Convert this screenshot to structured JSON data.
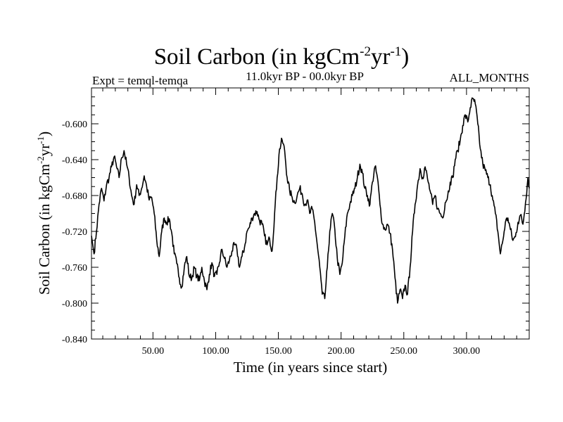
{
  "chart_data": {
    "type": "line",
    "title": "Soil Carbon (in kgCm",
    "title_sup1": "-2",
    "title_mid": "yr",
    "title_sup2": "-1",
    "title_end": ")",
    "subtitle_left": "Expt = temql-temqa",
    "subtitle_center": "11.0kyr BP - 00.0kyr BP",
    "subtitle_right": "ALL_MONTHS",
    "xlabel": "Time (in years since start)",
    "ylabel_main": "Soil Carbon (in kgCm",
    "ylabel_sup1": "-2",
    "ylabel_mid": "yr",
    "ylabel_sup2": "-1",
    "ylabel_end": ")",
    "xlim": [
      1,
      350
    ],
    "ylim": [
      -0.84,
      -0.56
    ],
    "x_ticks": [
      {
        "value": 50,
        "label": "50.00"
      },
      {
        "value": 100,
        "label": "100.00"
      },
      {
        "value": 150,
        "label": "150.00"
      },
      {
        "value": 200,
        "label": "200.00"
      },
      {
        "value": 250,
        "label": "250.00"
      },
      {
        "value": 300,
        "label": "300.00"
      }
    ],
    "y_ticks": [
      {
        "value": -0.6,
        "label": "-0.600"
      },
      {
        "value": -0.64,
        "label": "-0.640"
      },
      {
        "value": -0.68,
        "label": "-0.680"
      },
      {
        "value": -0.72,
        "label": "-0.720"
      },
      {
        "value": -0.76,
        "label": "-0.760"
      },
      {
        "value": -0.8,
        "label": "-0.800"
      },
      {
        "value": -0.84,
        "label": "-0.840"
      }
    ],
    "series": [
      {
        "name": "temql-temqa",
        "color": "#000000",
        "points": [
          [
            1,
            -0.725
          ],
          [
            3,
            -0.745
          ],
          [
            5,
            -0.72
          ],
          [
            7,
            -0.69
          ],
          [
            9,
            -0.672
          ],
          [
            11,
            -0.686
          ],
          [
            13,
            -0.668
          ],
          [
            15,
            -0.66
          ],
          [
            17,
            -0.648
          ],
          [
            19,
            -0.637
          ],
          [
            21,
            -0.648
          ],
          [
            23,
            -0.66
          ],
          [
            25,
            -0.638
          ],
          [
            27,
            -0.63
          ],
          [
            29,
            -0.645
          ],
          [
            31,
            -0.66
          ],
          [
            33,
            -0.68
          ],
          [
            35,
            -0.69
          ],
          [
            37,
            -0.668
          ],
          [
            39,
            -0.68
          ],
          [
            41,
            -0.672
          ],
          [
            43,
            -0.658
          ],
          [
            45,
            -0.67
          ],
          [
            47,
            -0.685
          ],
          [
            49,
            -0.682
          ],
          [
            51,
            -0.7
          ],
          [
            53,
            -0.73
          ],
          [
            55,
            -0.748
          ],
          [
            57,
            -0.72
          ],
          [
            59,
            -0.705
          ],
          [
            61,
            -0.71
          ],
          [
            63,
            -0.706
          ],
          [
            65,
            -0.722
          ],
          [
            67,
            -0.745
          ],
          [
            69,
            -0.756
          ],
          [
            71,
            -0.772
          ],
          [
            73,
            -0.782
          ],
          [
            75,
            -0.76
          ],
          [
            77,
            -0.748
          ],
          [
            79,
            -0.77
          ],
          [
            81,
            -0.772
          ],
          [
            83,
            -0.76
          ],
          [
            85,
            -0.77
          ],
          [
            87,
            -0.775
          ],
          [
            89,
            -0.76
          ],
          [
            91,
            -0.775
          ],
          [
            93,
            -0.785
          ],
          [
            95,
            -0.768
          ],
          [
            97,
            -0.755
          ],
          [
            99,
            -0.77
          ],
          [
            101,
            -0.768
          ],
          [
            103,
            -0.755
          ],
          [
            105,
            -0.74
          ],
          [
            107,
            -0.75
          ],
          [
            109,
            -0.76
          ],
          [
            111,
            -0.752
          ],
          [
            113,
            -0.742
          ],
          [
            115,
            -0.735
          ],
          [
            117,
            -0.74
          ],
          [
            119,
            -0.76
          ],
          [
            121,
            -0.748
          ],
          [
            123,
            -0.738
          ],
          [
            125,
            -0.72
          ],
          [
            127,
            -0.715
          ],
          [
            129,
            -0.705
          ],
          [
            131,
            -0.7
          ],
          [
            133,
            -0.698
          ],
          [
            135,
            -0.708
          ],
          [
            137,
            -0.712
          ],
          [
            139,
            -0.725
          ],
          [
            141,
            -0.735
          ],
          [
            143,
            -0.728
          ],
          [
            145,
            -0.742
          ],
          [
            147,
            -0.7
          ],
          [
            149,
            -0.66
          ],
          [
            151,
            -0.628
          ],
          [
            153,
            -0.618
          ],
          [
            155,
            -0.63
          ],
          [
            157,
            -0.66
          ],
          [
            159,
            -0.675
          ],
          [
            161,
            -0.682
          ],
          [
            163,
            -0.688
          ],
          [
            165,
            -0.68
          ],
          [
            167,
            -0.672
          ],
          [
            169,
            -0.678
          ],
          [
            171,
            -0.69
          ],
          [
            173,
            -0.685
          ],
          [
            175,
            -0.7
          ],
          [
            177,
            -0.695
          ],
          [
            179,
            -0.71
          ],
          [
            181,
            -0.735
          ],
          [
            183,
            -0.76
          ],
          [
            185,
            -0.79
          ],
          [
            187,
            -0.795
          ],
          [
            189,
            -0.76
          ],
          [
            191,
            -0.72
          ],
          [
            193,
            -0.7
          ],
          [
            195,
            -0.718
          ],
          [
            197,
            -0.75
          ],
          [
            199,
            -0.768
          ],
          [
            201,
            -0.755
          ],
          [
            203,
            -0.725
          ],
          [
            205,
            -0.7
          ],
          [
            207,
            -0.69
          ],
          [
            209,
            -0.68
          ],
          [
            211,
            -0.672
          ],
          [
            213,
            -0.66
          ],
          [
            215,
            -0.645
          ],
          [
            217,
            -0.655
          ],
          [
            219,
            -0.672
          ],
          [
            221,
            -0.68
          ],
          [
            223,
            -0.69
          ],
          [
            225,
            -0.665
          ],
          [
            227,
            -0.648
          ],
          [
            229,
            -0.66
          ],
          [
            231,
            -0.69
          ],
          [
            233,
            -0.712
          ],
          [
            235,
            -0.718
          ],
          [
            237,
            -0.712
          ],
          [
            239,
            -0.722
          ],
          [
            241,
            -0.74
          ],
          [
            243,
            -0.772
          ],
          [
            245,
            -0.8
          ],
          [
            247,
            -0.785
          ],
          [
            249,
            -0.795
          ],
          [
            251,
            -0.78
          ],
          [
            253,
            -0.79
          ],
          [
            255,
            -0.76
          ],
          [
            257,
            -0.72
          ],
          [
            259,
            -0.69
          ],
          [
            261,
            -0.668
          ],
          [
            263,
            -0.65
          ],
          [
            265,
            -0.66
          ],
          [
            267,
            -0.648
          ],
          [
            269,
            -0.662
          ],
          [
            271,
            -0.675
          ],
          [
            273,
            -0.69
          ],
          [
            275,
            -0.68
          ],
          [
            277,
            -0.695
          ],
          [
            279,
            -0.7
          ],
          [
            281,
            -0.705
          ],
          [
            283,
            -0.688
          ],
          [
            285,
            -0.68
          ],
          [
            287,
            -0.665
          ],
          [
            289,
            -0.66
          ],
          [
            291,
            -0.64
          ],
          [
            293,
            -0.63
          ],
          [
            295,
            -0.618
          ],
          [
            297,
            -0.602
          ],
          [
            299,
            -0.59
          ],
          [
            301,
            -0.598
          ],
          [
            303,
            -0.582
          ],
          [
            305,
            -0.572
          ],
          [
            307,
            -0.578
          ],
          [
            309,
            -0.6
          ],
          [
            311,
            -0.628
          ],
          [
            313,
            -0.645
          ],
          [
            315,
            -0.652
          ],
          [
            317,
            -0.66
          ],
          [
            319,
            -0.668
          ],
          [
            321,
            -0.685
          ],
          [
            323,
            -0.7
          ],
          [
            325,
            -0.72
          ],
          [
            327,
            -0.745
          ],
          [
            329,
            -0.73
          ],
          [
            331,
            -0.71
          ],
          [
            333,
            -0.705
          ],
          [
            335,
            -0.718
          ],
          [
            337,
            -0.73
          ],
          [
            339,
            -0.726
          ],
          [
            341,
            -0.71
          ],
          [
            343,
            -0.702
          ],
          [
            345,
            -0.712
          ],
          [
            347,
            -0.688
          ],
          [
            349,
            -0.66
          ],
          [
            350,
            -0.672
          ]
        ]
      }
    ]
  }
}
